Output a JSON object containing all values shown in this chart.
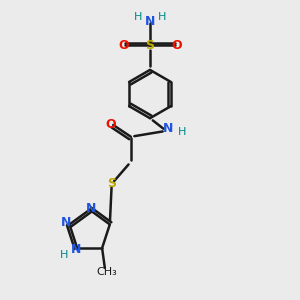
{
  "bg_color": "#ebebeb",
  "bond_color": "#1a1a1a",
  "bond_width": 1.8,
  "figsize": [
    3.0,
    3.0
  ],
  "dpi": 100,
  "colors": {
    "C": "#1a1a1a",
    "N": "#2255dd",
    "O": "#ee1100",
    "S": "#bbaa00",
    "H": "#008888"
  }
}
